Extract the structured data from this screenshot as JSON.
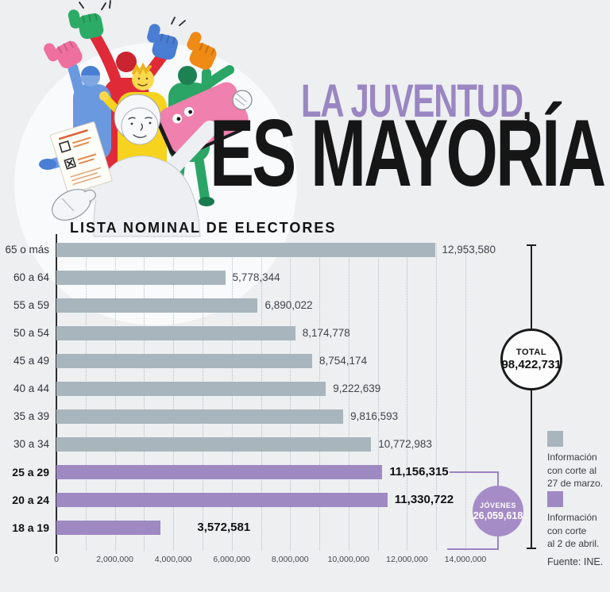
{
  "header": {
    "title_line1": "LA JUVENTUD",
    "title_comma": ",",
    "title_line2": "ES MAYORÍA",
    "accent_color": "#9a86c2",
    "dark_color": "#161616"
  },
  "chart_data": {
    "type": "bar",
    "orientation": "horizontal",
    "title": "LISTA NOMINAL DE ELECTORES",
    "xlim": [
      0,
      14000000
    ],
    "grid_interval": 1000000,
    "grid": true,
    "x_ticks": [
      "0",
      "2,000,000",
      "4,000,000",
      "6,000,000",
      "8,000,000",
      "10,000,000",
      "12,000,000",
      "14,000,000"
    ],
    "bar_color": "#a9b5bc",
    "highlight_color": "#9f89c2",
    "rows": [
      {
        "label": "65 o más",
        "value": 12953580,
        "display": "12,953,580",
        "highlight": false
      },
      {
        "label": "60 a 64",
        "value": 5778344,
        "display": "5,778,344",
        "highlight": false
      },
      {
        "label": "55 a 59",
        "value": 6890022,
        "display": "6,890,022",
        "highlight": false
      },
      {
        "label": "50 a 54",
        "value": 8174778,
        "display": "8,174,778",
        "highlight": false
      },
      {
        "label": "45 a 49",
        "value": 8754174,
        "display": "8,754,174",
        "highlight": false
      },
      {
        "label": "40 a 44",
        "value": 9222639,
        "display": "9,222,639",
        "highlight": false
      },
      {
        "label": "35 a 39",
        "value": 9816593,
        "display": "9,816,593",
        "highlight": false
      },
      {
        "label": "30 a 34",
        "value": 10772983,
        "display": "10,772,983",
        "highlight": false
      },
      {
        "label": "25 a 29",
        "value": 11156315,
        "display": "11,156,315",
        "highlight": true
      },
      {
        "label": "20 a 24",
        "value": 11330722,
        "display": "11,330,722",
        "highlight": true
      },
      {
        "label": "18 a 19",
        "value": 3572581,
        "display": "3,572,581",
        "highlight": true,
        "label_gap": 46
      }
    ],
    "total": {
      "label": "TOTAL",
      "value": "98,422,731"
    },
    "jovenes": {
      "label": "JÓVENES",
      "value": "26,059,618",
      "color": "#a58cc6",
      "bracket_color": "#9c84c4"
    },
    "legend": [
      {
        "color": "#a9b5bc",
        "lines": [
          "Información",
          "con corte al",
          "27 de marzo."
        ]
      },
      {
        "color": "#9f89c2",
        "lines": [
          "Información",
          "con corte",
          "al 2 de abril."
        ]
      }
    ],
    "source": "Fuente: INE.",
    "legend_position": "right"
  }
}
